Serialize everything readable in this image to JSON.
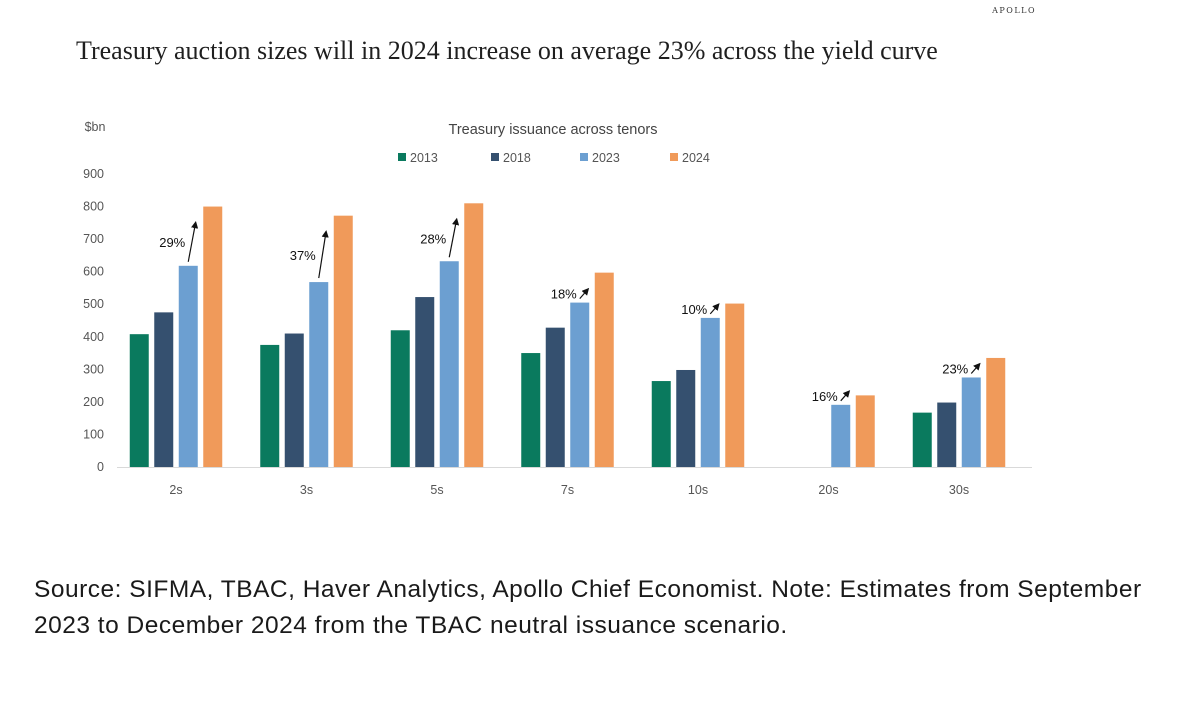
{
  "brand": "APOLLO",
  "headline": "Treasury auction sizes will in 2024 increase on average 23% across the yield curve",
  "source_note": "Source: SIFMA, TBAC, Haver Analytics, Apollo Chief Economist. Note: Estimates from September 2023 to December 2024 from the TBAC neutral issuance scenario.",
  "chart_data": {
    "type": "bar",
    "title": "Treasury issuance across tenors",
    "unit_label": "$bn",
    "categories": [
      "2s",
      "3s",
      "5s",
      "7s",
      "10s",
      "20s",
      "30s"
    ],
    "series": [
      {
        "name": "2013",
        "color": "#0a7a5e",
        "values": [
          408,
          375,
          420,
          350,
          264,
          null,
          167
        ]
      },
      {
        "name": "2018",
        "color": "#35506f",
        "values": [
          475,
          410,
          522,
          428,
          298,
          null,
          198
        ]
      },
      {
        "name": "2023",
        "color": "#6c9fd1",
        "values": [
          618,
          568,
          632,
          505,
          458,
          191,
          275
        ]
      },
      {
        "name": "2024",
        "color": "#f09a5a",
        "values": [
          800,
          772,
          810,
          597,
          502,
          220,
          335
        ]
      }
    ],
    "annotations": [
      {
        "category": "2s",
        "text": "29%"
      },
      {
        "category": "3s",
        "text": "37%"
      },
      {
        "category": "5s",
        "text": "28%"
      },
      {
        "category": "7s",
        "text": "18%"
      },
      {
        "category": "10s",
        "text": "10%"
      },
      {
        "category": "20s",
        "text": "16%"
      },
      {
        "category": "30s",
        "text": "23%"
      }
    ],
    "ylim": [
      0,
      900
    ],
    "yticks": [
      0,
      100,
      200,
      300,
      400,
      500,
      600,
      700,
      800,
      900
    ],
    "grid": false,
    "legend_position": "top-center"
  }
}
